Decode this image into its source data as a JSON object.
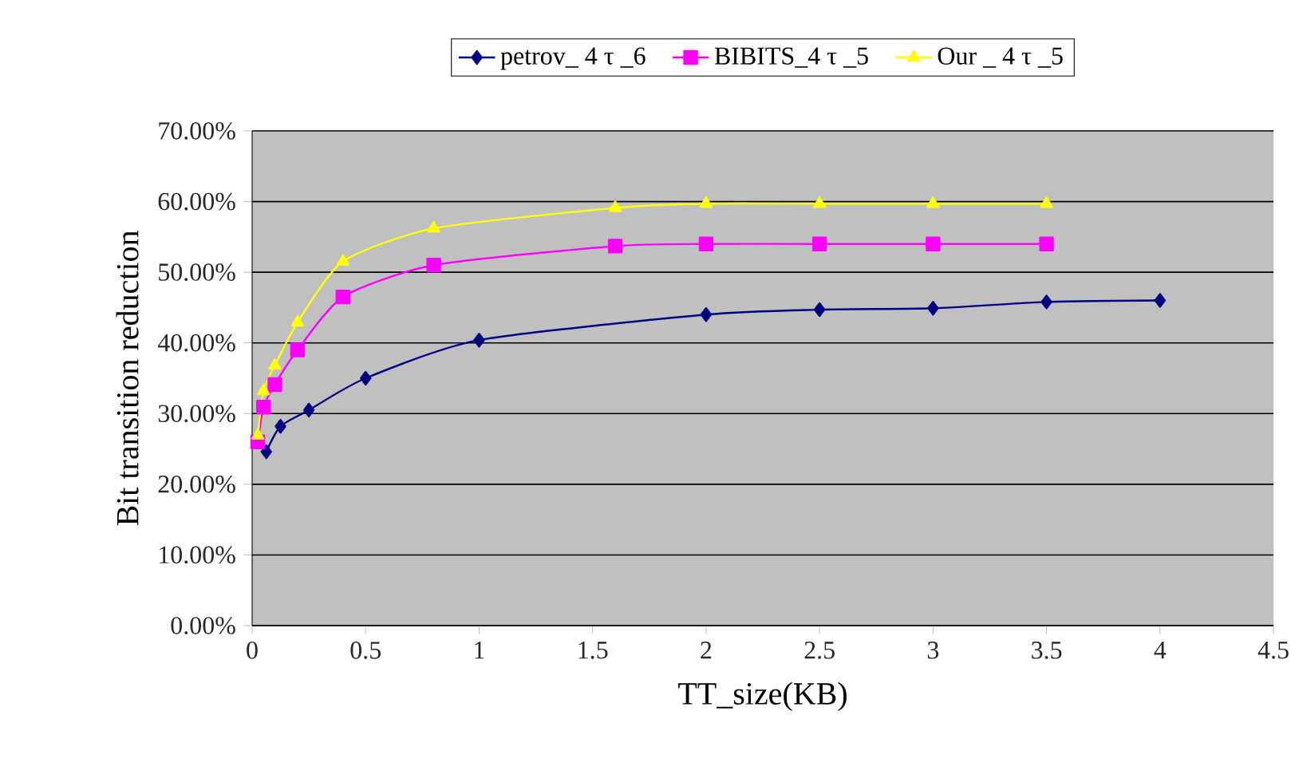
{
  "chart_data": {
    "type": "line",
    "xlabel": "TT_size(KB)",
    "ylabel": "Bit transition reduction",
    "xlim": [
      0,
      4.5
    ],
    "xticks": [
      0,
      0.5,
      1,
      1.5,
      2,
      2.5,
      3,
      3.5,
      4,
      4.5
    ],
    "ylim": [
      0,
      70
    ],
    "yticks": [
      {
        "value": 0,
        "label": "0.00%"
      },
      {
        "value": 10,
        "label": "10.00%"
      },
      {
        "value": 20,
        "label": "20.00%"
      },
      {
        "value": 30,
        "label": "30.00%"
      },
      {
        "value": 40,
        "label": "40.00%"
      },
      {
        "value": 50,
        "label": "50.00%"
      },
      {
        "value": 60,
        "label": "60.00%"
      },
      {
        "value": 70,
        "label": "70.00%"
      }
    ],
    "grid": "y",
    "legend": "top",
    "series": [
      {
        "name": "petrov_ 4 τ _6",
        "color": "#000080",
        "marker": "diamond",
        "x": [
          0.0625,
          0.125,
          0.25,
          0.5,
          1,
          2,
          2.5,
          3,
          3.5,
          4
        ],
        "values": [
          24.6,
          28.2,
          30.5,
          35.0,
          40.4,
          44.0,
          44.7,
          44.9,
          45.8,
          46.0
        ]
      },
      {
        "name": "BIBITS_4 τ _5",
        "color": "#ff00ff",
        "marker": "square",
        "x": [
          0.025,
          0.05,
          0.1,
          0.2,
          0.4,
          0.8,
          1.6,
          2,
          2.5,
          3,
          3.5
        ],
        "values": [
          26.0,
          30.9,
          34.1,
          39.0,
          46.5,
          51.0,
          53.7,
          54.0,
          54.0,
          54.0,
          54.0
        ]
      },
      {
        "name": "Our _ 4 τ _5",
        "color": "#ffff00",
        "marker": "triangle",
        "x": [
          0.025,
          0.05,
          0.1,
          0.2,
          0.4,
          0.8,
          1.6,
          2,
          2.5,
          3,
          3.5
        ],
        "values": [
          26.9,
          33.2,
          36.8,
          42.9,
          51.5,
          56.2,
          59.1,
          59.7,
          59.7,
          59.7,
          59.7
        ]
      }
    ]
  }
}
